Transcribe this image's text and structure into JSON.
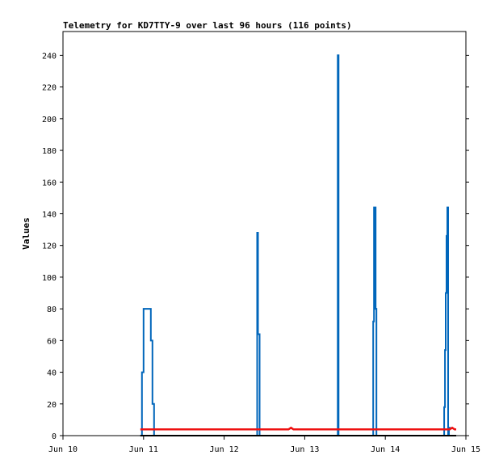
{
  "chart_data": {
    "type": "line",
    "title": "Telemetry for KD7TTY-9 over last 96 hours (116 points)",
    "xlabel": "",
    "ylabel": "Values",
    "x_ticks": [
      "Jun 10",
      "Jun 11",
      "Jun 12",
      "Jun 13",
      "Jun 14",
      "Jun 15"
    ],
    "xlim": [
      0,
      5
    ],
    "x_unit": "days since Jun 10",
    "y_ticks": [
      0,
      20,
      40,
      60,
      80,
      100,
      120,
      140,
      160,
      180,
      200,
      220,
      240
    ],
    "ylim": [
      0,
      255
    ],
    "grid": false,
    "series": [
      {
        "color": "#0066bb",
        "x": [
          0.96,
          0.98,
          0.98,
          1.0,
          1.0,
          1.03,
          1.03,
          1.09,
          1.09,
          1.11,
          1.11,
          1.13,
          1.13,
          1.15,
          2.41,
          2.41,
          2.42,
          2.42,
          2.44,
          2.44,
          2.46,
          3.39,
          3.41,
          3.41,
          3.42,
          3.42,
          3.44,
          3.83,
          3.85,
          3.85,
          3.86,
          3.86,
          3.88,
          3.88,
          3.89,
          3.89,
          3.91,
          4.72,
          4.73,
          4.73,
          4.74,
          4.74,
          4.75,
          4.75,
          4.76,
          4.76,
          4.77,
          4.77,
          4.78,
          4.78,
          4.79,
          4.79,
          4.81
        ],
        "y": [
          0,
          0,
          40,
          40,
          80,
          80,
          80,
          80,
          60,
          60,
          20,
          20,
          0,
          0,
          0,
          128,
          128,
          64,
          64,
          0,
          0,
          0,
          0,
          240,
          240,
          0,
          0,
          0,
          0,
          72,
          72,
          144,
          144,
          80,
          80,
          0,
          0,
          0,
          0,
          18,
          18,
          54,
          54,
          90,
          90,
          126,
          126,
          144,
          144,
          0,
          0,
          5,
          5
        ]
      },
      {
        "color": "#ee1111",
        "x": [
          0.96,
          2.8,
          2.83,
          2.86,
          4.8,
          4.83,
          4.86,
          4.88
        ],
        "y": [
          4,
          4,
          5,
          4,
          4,
          5,
          4,
          4
        ]
      },
      {
        "color": "#000000",
        "x": [
          0.96,
          4.88
        ],
        "y": [
          0,
          0
        ]
      }
    ]
  }
}
